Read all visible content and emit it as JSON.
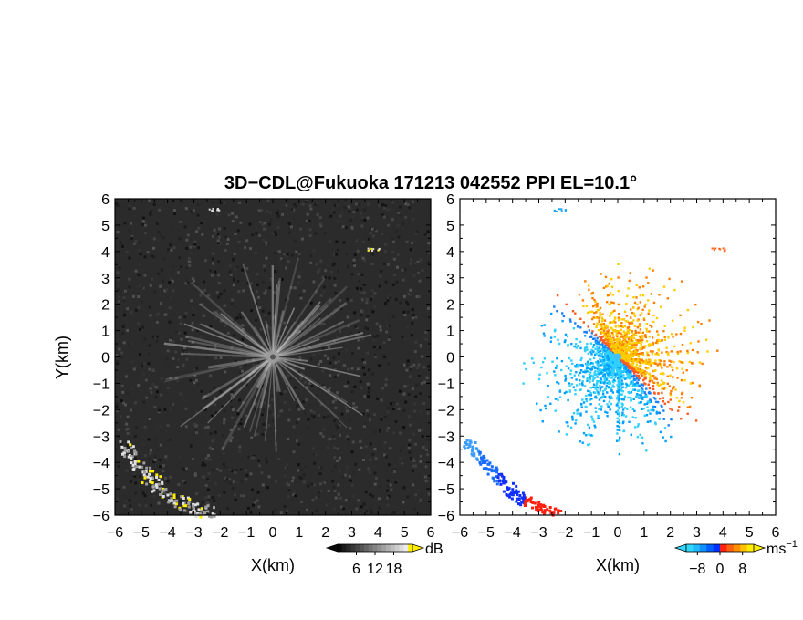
{
  "chart_data": [
    {
      "type": "heatmap",
      "title": "3D−CDL@Fukuoka 171213 042552 PPI EL=10.1°",
      "xlabel": "X(km)",
      "ylabel": "Y(km)",
      "xlim": [
        -6,
        6
      ],
      "ylim": [
        -6,
        6
      ],
      "xticks": [
        "−6",
        "−5",
        "−4",
        "−3",
        "−2",
        "−1",
        "0",
        "1",
        "2",
        "3",
        "4",
        "5",
        "6"
      ],
      "yticks": [
        "6",
        "5",
        "4",
        "3",
        "2",
        "1",
        "0",
        "−1",
        "−2",
        "−3",
        "−4",
        "−5",
        "−6"
      ],
      "colormap": "grayscale-yellow",
      "colorbar": {
        "unit": "dB",
        "ticks": [
          "6",
          "12",
          "18"
        ],
        "min": 0,
        "max": 24
      },
      "features": [
        {
          "kind": "radial-streaks",
          "center": [
            0,
            0
          ]
        },
        {
          "kind": "echo-band",
          "points": [
            [
              -5.7,
              -3.3
            ],
            [
              -5.2,
              -4.0
            ],
            [
              -4.6,
              -4.7
            ],
            [
              -3.9,
              -5.3
            ],
            [
              -3.0,
              -5.7
            ],
            [
              -2.4,
              -5.9
            ]
          ]
        },
        {
          "kind": "echo-patch",
          "at": [
            -2.2,
            5.6
          ]
        },
        {
          "kind": "echo-patch",
          "at": [
            3.8,
            4.1
          ]
        }
      ],
      "colors": {
        "background": "#2b2b2b",
        "streak": "#bdbdbd",
        "high": "#ffee00"
      }
    },
    {
      "type": "heatmap",
      "xlabel": "X(km)",
      "xlim": [
        -6,
        6
      ],
      "ylim": [
        -6,
        6
      ],
      "xticks": [
        "−6",
        "−5",
        "−4",
        "−3",
        "−2",
        "−1",
        "0",
        "1",
        "2",
        "3",
        "4",
        "5",
        "6"
      ],
      "yticks": [
        "6",
        "5",
        "4",
        "3",
        "2",
        "1",
        "0",
        "−1",
        "−2",
        "−3",
        "−4",
        "−5",
        "−6"
      ],
      "colormap": "doppler-velocity",
      "colorbar": {
        "unit": "ms",
        "unit_exp": "−1",
        "ticks": [
          "−8",
          "0",
          "8"
        ],
        "min": -12,
        "max": 12
      },
      "features": [
        {
          "kind": "velocity-star",
          "center": [
            0,
            0
          ]
        },
        {
          "kind": "echo-band",
          "points": [
            [
              -5.8,
              -3.2
            ],
            [
              -5.2,
              -3.9
            ],
            [
              -4.5,
              -4.6
            ],
            [
              -3.8,
              -5.3
            ],
            [
              -3.2,
              -5.6
            ],
            [
              -2.3,
              -5.9
            ]
          ]
        },
        {
          "kind": "echo-patch",
          "at": [
            -2.2,
            5.6
          ]
        },
        {
          "kind": "echo-patch",
          "at": [
            3.8,
            4.1
          ]
        }
      ],
      "colors": {
        "approaching": "#00c8ff",
        "receding": "#ff4000",
        "strong-neg": "#0020ff",
        "strong-pos": "#ffee00",
        "deep-neg": "#2040ff",
        "deep-pos": "#ff2010"
      }
    }
  ]
}
